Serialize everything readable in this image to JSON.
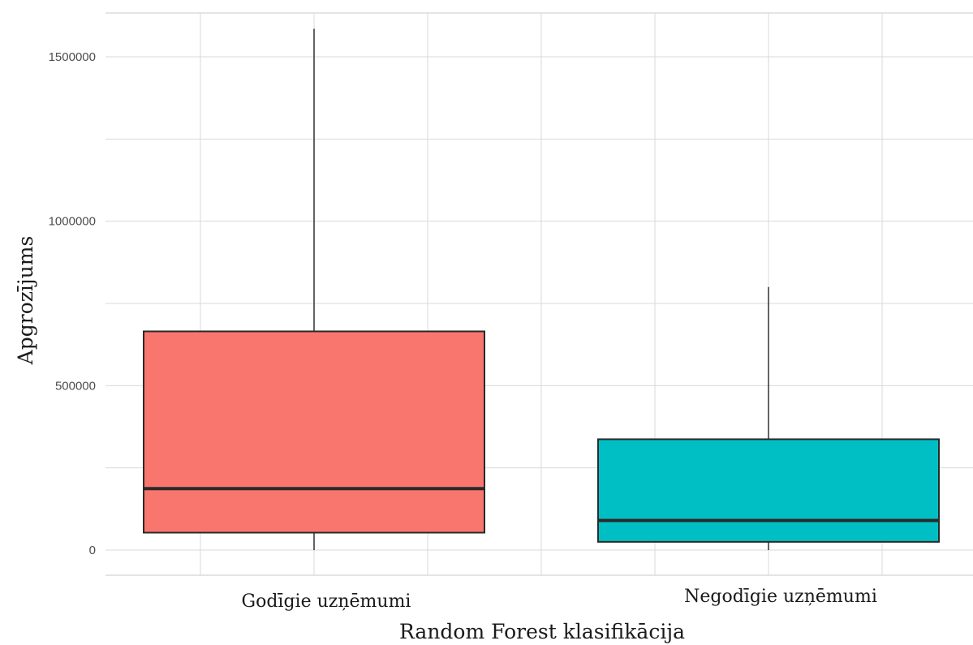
{
  "chart_data": {
    "type": "boxplot",
    "xlabel": "Random Forest klasifikācija",
    "ylabel": "Apgrozījums",
    "ylim": [
      -75000,
      1640000
    ],
    "yticks": [
      0,
      500000,
      1000000,
      1500000
    ],
    "ytick_labels": [
      "0",
      "500000",
      "1000000",
      "1500000"
    ],
    "categories": [
      "Godīgie uzņēmumi",
      "Negodīgie uzņēmumi"
    ],
    "grid": true,
    "legend": "none",
    "boxes": [
      {
        "category": "Godīgie uzņēmumi",
        "min": 0,
        "q1": 53000,
        "median": 187000,
        "q3": 665000,
        "max": 1585000,
        "color": "#F8766D"
      },
      {
        "category": "Negodīgie uzņēmumi",
        "min": 0,
        "q1": 25000,
        "median": 90000,
        "q3": 337000,
        "max": 800000,
        "color": "#00BFC4"
      }
    ]
  }
}
